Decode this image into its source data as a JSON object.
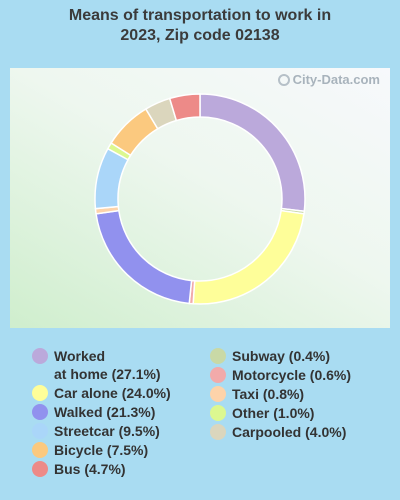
{
  "title_line1": "Means of transportation to work in",
  "title_line2": "2023, Zip code 02138",
  "watermark": "City-Data.com",
  "chart_data": {
    "type": "pie",
    "donut": true,
    "legend_position": "bottom",
    "slices": [
      {
        "label": "Worked at home",
        "legend": "Worked at home (27.1%)",
        "value": 27.1,
        "color": "#bba9db"
      },
      {
        "label": "Subway",
        "legend": "Subway (0.4%)",
        "value": 0.4,
        "color": "#c9d9a6"
      },
      {
        "label": "Car alone",
        "legend": "Car alone (24.0%)",
        "value": 24.0,
        "color": "#fefe99"
      },
      {
        "label": "Motorcycle",
        "legend": "Motorcycle (0.6%)",
        "value": 0.6,
        "color": "#f2aaaa"
      },
      {
        "label": "Walked",
        "legend": "Walked (21.3%)",
        "value": 21.3,
        "color": "#9191ee"
      },
      {
        "label": "Taxi",
        "legend": "Taxi (0.8%)",
        "value": 0.8,
        "color": "#fdd3aa"
      },
      {
        "label": "Streetcar",
        "legend": "Streetcar (9.5%)",
        "value": 9.5,
        "color": "#aad6f9"
      },
      {
        "label": "Other",
        "legend": "Other (1.0%)",
        "value": 1.0,
        "color": "#dcf890"
      },
      {
        "label": "Bicycle",
        "legend": "Bicycle (7.5%)",
        "value": 7.5,
        "color": "#fbc97f"
      },
      {
        "label": "Carpooled",
        "legend": "Carpooled (4.0%)",
        "value": 4.0,
        "color": "#dbd6bd"
      },
      {
        "label": "Bus",
        "legend": "Bus (4.7%)",
        "value": 4.7,
        "color": "#ed8a88"
      }
    ]
  },
  "legend": {
    "col1": [
      {
        "line1": "Worked",
        "line2": "at home (27.1%)",
        "color": "#bba9db"
      },
      {
        "line1": "Car alone (24.0%)",
        "color": "#fefe99"
      },
      {
        "line1": "Walked (21.3%)",
        "color": "#9191ee"
      },
      {
        "line1": "Streetcar (9.5%)",
        "color": "#aad6f9"
      },
      {
        "line1": "Bicycle (7.5%)",
        "color": "#fbc97f"
      },
      {
        "line1": "Bus (4.7%)",
        "color": "#ed8a88"
      }
    ],
    "col2": [
      {
        "line1": "Subway (0.4%)",
        "color": "#c9d9a6"
      },
      {
        "line1": "Motorcycle (0.6%)",
        "color": "#f2aaaa"
      },
      {
        "line1": "Taxi (0.8%)",
        "color": "#fdd3aa"
      },
      {
        "line1": "Other (1.0%)",
        "color": "#dcf890"
      },
      {
        "line1": "Carpooled (4.0%)",
        "color": "#dbd6bd"
      }
    ]
  }
}
